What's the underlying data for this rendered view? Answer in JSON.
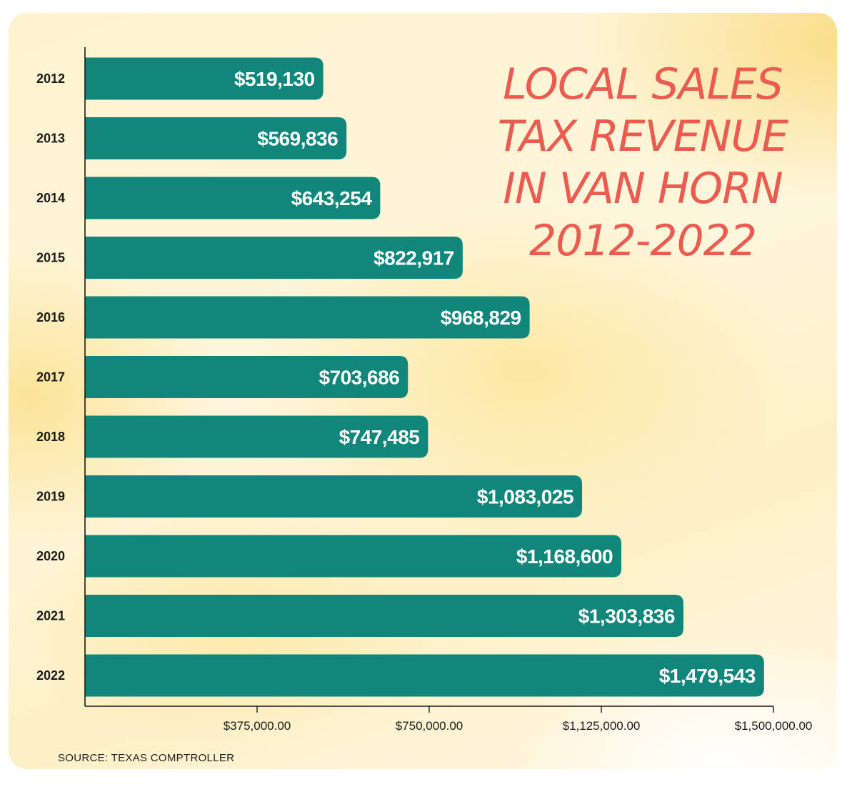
{
  "chart_data": {
    "type": "bar",
    "orientation": "horizontal",
    "title_lines": [
      "LOCAL SALES",
      "TAX REVENUE",
      "IN VAN HORN",
      "2012-2022"
    ],
    "categories": [
      "2012",
      "2013",
      "2014",
      "2015",
      "2016",
      "2017",
      "2018",
      "2019",
      "2020",
      "2021",
      "2022"
    ],
    "values": [
      519130,
      569836,
      643254,
      822917,
      968829,
      703686,
      747485,
      1083025,
      1168600,
      1303836,
      1479543
    ],
    "value_labels": [
      "$519,130",
      "$569,836",
      "$643,254",
      "$822,917",
      "$968,829",
      "$703,686",
      "$747,485",
      "$1,083,025",
      "$1,168,600",
      "$1,303,836",
      "$1,479,543"
    ],
    "x_ticks": [
      375000,
      750000,
      1125000,
      1500000
    ],
    "x_tick_labels": [
      "$375,000.00",
      "$750,000.00",
      "$1,125,000.00",
      "$1,500,000.00"
    ],
    "xlim": [
      0,
      1500000
    ],
    "xlabel": "",
    "ylabel": "",
    "grid": false,
    "bar_color": "#11877b",
    "title_color": "#ec5b4f",
    "source": "SOURCE: TEXAS COMPTROLLER"
  }
}
